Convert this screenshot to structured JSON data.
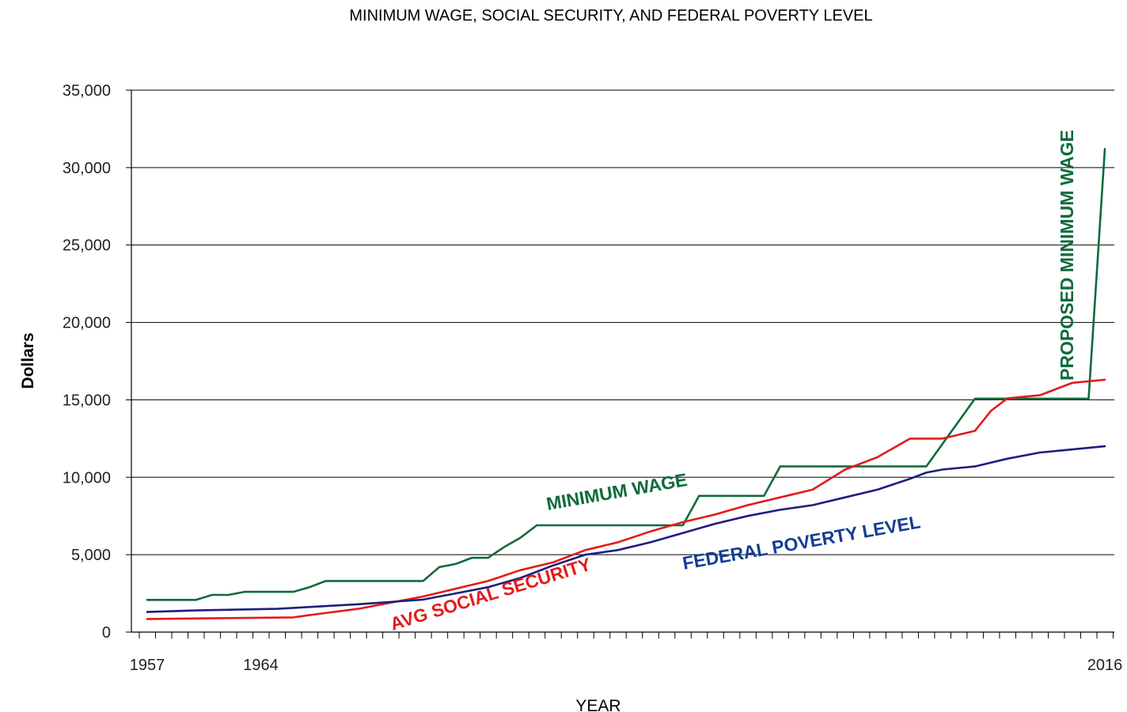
{
  "chart_data": {
    "type": "line",
    "title": "MINIMUM WAGE, SOCIAL SECURITY, AND FEDERAL POVERTY LEVEL",
    "xlabel": "YEAR",
    "ylabel": "Dollars",
    "xlim": [
      1957,
      2016
    ],
    "ylim": [
      0,
      35000
    ],
    "x_tick_labels": [
      "1957",
      "1964",
      "2016"
    ],
    "y_ticks": [
      0,
      5000,
      10000,
      15000,
      20000,
      25000,
      30000,
      35000
    ],
    "y_tick_labels": [
      "0",
      "5,000",
      "10,000",
      "15,000",
      "20,000",
      "25,000",
      "30,000",
      "35,000"
    ],
    "grid": "horizontal",
    "series": [
      {
        "name": "MINIMUM WAGE",
        "color": "#0f6b3a",
        "points": [
          [
            1957,
            2080
          ],
          [
            1960,
            2080
          ],
          [
            1961,
            2400
          ],
          [
            1962,
            2400
          ],
          [
            1963,
            2600
          ],
          [
            1966,
            2600
          ],
          [
            1967,
            2900
          ],
          [
            1968,
            3300
          ],
          [
            1974,
            3300
          ],
          [
            1975,
            4200
          ],
          [
            1976,
            4400
          ],
          [
            1977,
            4800
          ],
          [
            1978,
            4800
          ],
          [
            1979,
            5500
          ],
          [
            1980,
            6100
          ],
          [
            1981,
            6900
          ],
          [
            1990,
            6900
          ],
          [
            1991,
            8800
          ],
          [
            1995,
            8800
          ],
          [
            1996,
            10700
          ],
          [
            2005,
            10700
          ],
          [
            2008,
            15080
          ],
          [
            2015,
            15080
          ],
          [
            2016,
            31200
          ]
        ]
      },
      {
        "name": "AVG SOCIAL SECURITY",
        "color": "#e31b1b",
        "points": [
          [
            1957,
            850
          ],
          [
            1966,
            950
          ],
          [
            1967,
            1100
          ],
          [
            1970,
            1500
          ],
          [
            1972,
            1900
          ],
          [
            1974,
            2300
          ],
          [
            1976,
            2800
          ],
          [
            1978,
            3300
          ],
          [
            1980,
            4000
          ],
          [
            1982,
            4500
          ],
          [
            1984,
            5300
          ],
          [
            1986,
            5800
          ],
          [
            1988,
            6500
          ],
          [
            1990,
            7100
          ],
          [
            1992,
            7600
          ],
          [
            1994,
            8200
          ],
          [
            1996,
            8700
          ],
          [
            1998,
            9200
          ],
          [
            2000,
            10500
          ],
          [
            2002,
            11300
          ],
          [
            2004,
            12500
          ],
          [
            2006,
            12500
          ],
          [
            2008,
            13000
          ],
          [
            2009,
            14300
          ],
          [
            2010,
            15100
          ],
          [
            2012,
            15300
          ],
          [
            2014,
            16100
          ],
          [
            2016,
            16300
          ]
        ]
      },
      {
        "name": "FEDERAL POVERTY LEVEL",
        "color": "#1c1e80",
        "points": [
          [
            1957,
            1300
          ],
          [
            1960,
            1400
          ],
          [
            1965,
            1500
          ],
          [
            1970,
            1800
          ],
          [
            1974,
            2100
          ],
          [
            1976,
            2500
          ],
          [
            1978,
            2900
          ],
          [
            1980,
            3500
          ],
          [
            1982,
            4300
          ],
          [
            1984,
            5000
          ],
          [
            1986,
            5300
          ],
          [
            1988,
            5800
          ],
          [
            1990,
            6400
          ],
          [
            1992,
            7000
          ],
          [
            1994,
            7500
          ],
          [
            1996,
            7900
          ],
          [
            1998,
            8200
          ],
          [
            2000,
            8700
          ],
          [
            2002,
            9200
          ],
          [
            2004,
            9900
          ],
          [
            2005,
            10300
          ],
          [
            2006,
            10500
          ],
          [
            2008,
            10700
          ],
          [
            2010,
            11200
          ],
          [
            2012,
            11600
          ],
          [
            2014,
            11800
          ],
          [
            2016,
            12000
          ]
        ]
      }
    ],
    "annotations": [
      {
        "text": "MINIMUM WAGE",
        "series": 0
      },
      {
        "text": "AVG SOCIAL SECURITY",
        "series": 1
      },
      {
        "text": "FEDERAL POVERTY LEVEL",
        "series": 2
      },
      {
        "text": "PROPOSED MINIMUM WAGE",
        "series": 0
      }
    ]
  }
}
